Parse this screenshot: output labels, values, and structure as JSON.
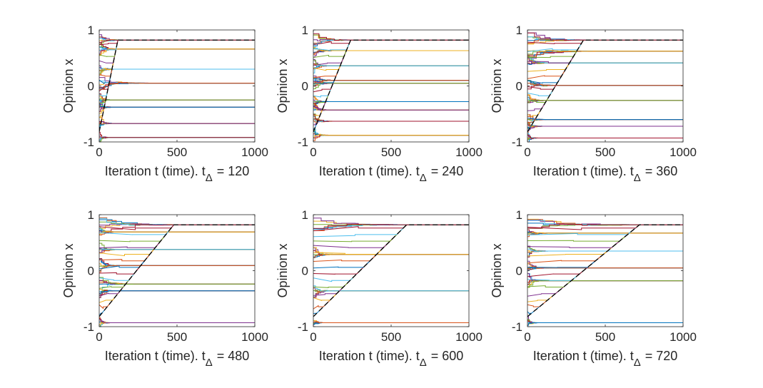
{
  "figure": {
    "colors": [
      "#0072BD",
      "#D95319",
      "#EDB120",
      "#7E2F8E",
      "#77AC30",
      "#4DBEEE",
      "#A2142F"
    ],
    "trend_color": "#000000"
  },
  "chart_data": [
    {
      "type": "line",
      "xlabel": "Iteration t (time).  t",
      "xlabel_sub": "Δ",
      "xlabel_value": "= 120",
      "ylabel": "Opinion x",
      "xlim": [
        0,
        1000
      ],
      "ylim": [
        -1,
        1
      ],
      "xticks": [
        "0",
        "500",
        "1000"
      ],
      "yticks": [
        "-1",
        "0",
        "1"
      ],
      "clusters": [
        {
          "value": 0.82,
          "converge_t": 140
        },
        {
          "value": 0.66,
          "converge_t": 110
        },
        {
          "value": 0.3,
          "converge_t": 90
        },
        {
          "value": 0.05,
          "converge_t": 300
        },
        {
          "value": -0.25,
          "converge_t": 70
        },
        {
          "value": -0.38,
          "converge_t": 80
        },
        {
          "value": -0.67,
          "converge_t": 90
        },
        {
          "value": -0.92,
          "converge_t": 60
        }
      ],
      "trend": [
        [
          0,
          -0.82
        ],
        [
          120,
          0.82
        ],
        [
          1000,
          0.82
        ]
      ]
    },
    {
      "type": "line",
      "xlabel": "Iteration t (time).  t",
      "xlabel_sub": "Δ",
      "xlabel_value": "= 240",
      "ylabel": "Opinion x",
      "xlim": [
        0,
        1000
      ],
      "ylim": [
        -1,
        1
      ],
      "xticks": [
        "0",
        "500",
        "1000"
      ],
      "yticks": [
        "-1",
        "0",
        "1"
      ],
      "clusters": [
        {
          "value": 0.82,
          "converge_t": 250
        },
        {
          "value": 0.63,
          "converge_t": 120
        },
        {
          "value": 0.36,
          "converge_t": 100
        },
        {
          "value": 0.1,
          "converge_t": 120
        },
        {
          "value": 0.05,
          "converge_t": 130
        },
        {
          "value": -0.28,
          "converge_t": 90
        },
        {
          "value": -0.43,
          "converge_t": 100
        },
        {
          "value": -0.63,
          "converge_t": 110
        },
        {
          "value": -0.88,
          "converge_t": 90
        }
      ],
      "trend": [
        [
          0,
          -0.82
        ],
        [
          240,
          0.82
        ],
        [
          1000,
          0.82
        ]
      ]
    },
    {
      "type": "line",
      "xlabel": "Iteration t (time).  t",
      "xlabel_sub": "Δ",
      "xlabel_value": "= 360",
      "ylabel": "Opinion x",
      "xlim": [
        0,
        1000
      ],
      "ylim": [
        -1,
        1
      ],
      "xticks": [
        "0",
        "500",
        "1000"
      ],
      "yticks": [
        "-1",
        "0",
        "1"
      ],
      "clusters": [
        {
          "value": 0.82,
          "converge_t": 380
        },
        {
          "value": 0.62,
          "converge_t": 420
        },
        {
          "value": 0.41,
          "converge_t": 120
        },
        {
          "value": 0.01,
          "converge_t": 200
        },
        {
          "value": -0.26,
          "converge_t": 100
        },
        {
          "value": -0.6,
          "converge_t": 110
        },
        {
          "value": -0.72,
          "converge_t": 90
        },
        {
          "value": -0.93,
          "converge_t": 60
        }
      ],
      "trend": [
        [
          0,
          -0.82
        ],
        [
          360,
          0.82
        ],
        [
          1000,
          0.82
        ]
      ]
    },
    {
      "type": "line",
      "xlabel": "Iteration t (time).  t",
      "xlabel_sub": "Δ",
      "xlabel_value": "= 480",
      "ylabel": "Opinion x",
      "xlim": [
        0,
        1000
      ],
      "ylim": [
        -1,
        1
      ],
      "xticks": [
        "0",
        "500",
        "1000"
      ],
      "yticks": [
        "-1",
        "0",
        "1"
      ],
      "clusters": [
        {
          "value": 0.82,
          "converge_t": 500
        },
        {
          "value": 0.69,
          "converge_t": 100
        },
        {
          "value": 0.38,
          "converge_t": 120
        },
        {
          "value": 0.09,
          "converge_t": 110
        },
        {
          "value": -0.24,
          "converge_t": 200
        },
        {
          "value": -0.36,
          "converge_t": 100
        },
        {
          "value": -0.93,
          "converge_t": 60
        }
      ],
      "trend": [
        [
          0,
          -0.82
        ],
        [
          480,
          0.82
        ],
        [
          1000,
          0.82
        ]
      ]
    },
    {
      "type": "line",
      "xlabel": "Iteration t (time).  t",
      "xlabel_sub": "Δ",
      "xlabel_value": "= 600",
      "ylabel": "Opinion x",
      "xlim": [
        0,
        1000
      ],
      "ylim": [
        -1,
        1
      ],
      "xticks": [
        "0",
        "500",
        "1000"
      ],
      "yticks": [
        "-1",
        "0",
        "1"
      ],
      "clusters": [
        {
          "value": 0.82,
          "converge_t": 620
        },
        {
          "value": 0.29,
          "converge_t": 120
        },
        {
          "value": -0.36,
          "converge_t": 120
        },
        {
          "value": -0.93,
          "converge_t": 60
        }
      ],
      "trend": [
        [
          0,
          -0.82
        ],
        [
          600,
          0.82
        ],
        [
          1000,
          0.82
        ]
      ]
    },
    {
      "type": "line",
      "xlabel": "Iteration t (time).  t",
      "xlabel_sub": "Δ",
      "xlabel_value": "= 720",
      "ylabel": "Opinion x",
      "xlim": [
        0,
        1000
      ],
      "ylim": [
        -1,
        1
      ],
      "xticks": [
        "0",
        "500",
        "1000"
      ],
      "yticks": [
        "-1",
        "0",
        "1"
      ],
      "clusters": [
        {
          "value": 0.82,
          "converge_t": 740
        },
        {
          "value": 0.67,
          "converge_t": 120
        },
        {
          "value": 0.35,
          "converge_t": 120
        },
        {
          "value": 0.05,
          "converge_t": 130
        },
        {
          "value": -0.18,
          "converge_t": 100
        },
        {
          "value": -0.93,
          "converge_t": 60
        }
      ],
      "trend": [
        [
          0,
          -0.82
        ],
        [
          720,
          0.82
        ],
        [
          1000,
          0.82
        ]
      ]
    }
  ]
}
